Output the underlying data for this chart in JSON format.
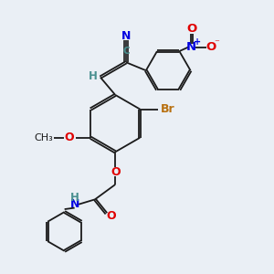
{
  "bg_color": "#eaeff5",
  "bond_color": "#1a1a1a",
  "N_color": "#0000e0",
  "O_color": "#e00000",
  "Br_color": "#b87010",
  "H_color": "#4a9090",
  "C_color": "#4a9090",
  "label_fontsize": 8.5,
  "figsize": [
    3.0,
    3.0
  ],
  "dpi": 100,
  "xlim": [
    0,
    10
  ],
  "ylim": [
    0,
    10
  ]
}
